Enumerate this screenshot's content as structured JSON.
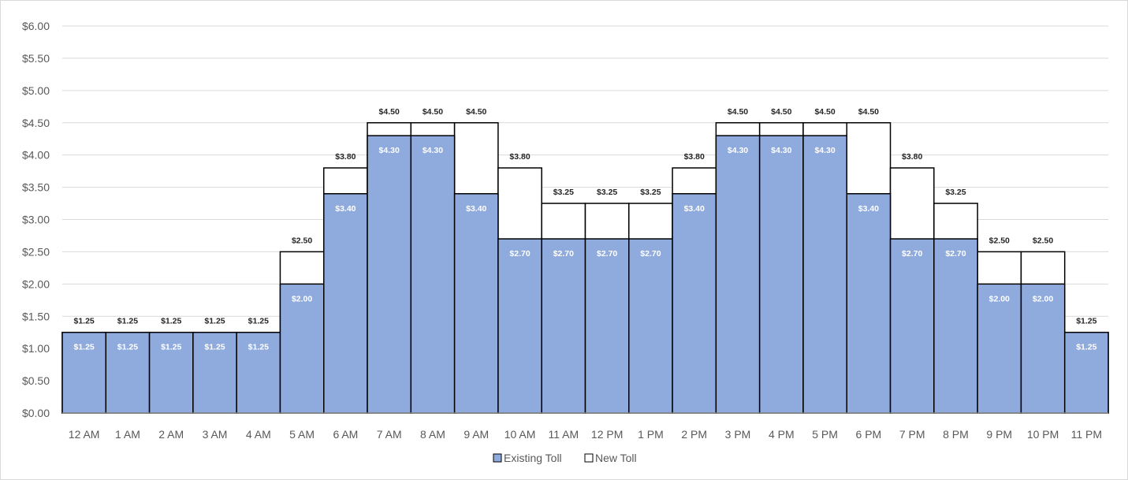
{
  "chart_data": {
    "type": "bar",
    "title": "",
    "xlabel": "",
    "ylabel": "",
    "ylim": [
      0,
      6
    ],
    "ytick_step": 0.5,
    "y_format": "currency-2dp",
    "grid": true,
    "legend_position": "bottom",
    "categories": [
      "12 AM",
      "1 AM",
      "2 AM",
      "3 AM",
      "4 AM",
      "5 AM",
      "6 AM",
      "7 AM",
      "8 AM",
      "9 AM",
      "10 AM",
      "11 AM",
      "12 PM",
      "1 PM",
      "2 PM",
      "3 PM",
      "4 PM",
      "5 PM",
      "6 PM",
      "7 PM",
      "8 PM",
      "9 PM",
      "10 PM",
      "11 PM"
    ],
    "series": [
      {
        "name": "New Toll",
        "color": "#ffffff",
        "values": [
          1.25,
          1.25,
          1.25,
          1.25,
          1.25,
          2.5,
          3.8,
          4.5,
          4.5,
          4.5,
          3.8,
          3.25,
          3.25,
          3.25,
          3.8,
          4.5,
          4.5,
          4.5,
          4.5,
          3.8,
          3.25,
          2.5,
          2.5,
          1.25
        ],
        "labels": [
          "$1.25",
          "$1.25",
          "$1.25",
          "$1.25",
          "$1.25",
          "$2.50",
          "$3.80",
          "$4.50",
          "$4.50",
          "$4.50",
          "$3.80",
          "$3.25",
          "$3.25",
          "$3.25",
          "$3.80",
          "$4.50",
          "$4.50",
          "$4.50",
          "$4.50",
          "$3.80",
          "$3.25",
          "$2.50",
          "$2.50",
          "$1.25"
        ]
      },
      {
        "name": "Existing Toll",
        "color": "#8faadc",
        "values": [
          1.25,
          1.25,
          1.25,
          1.25,
          1.25,
          2.0,
          3.4,
          4.3,
          4.3,
          3.4,
          2.7,
          2.7,
          2.7,
          2.7,
          3.4,
          4.3,
          4.3,
          4.3,
          3.4,
          2.7,
          2.7,
          2.0,
          2.0,
          1.25
        ],
        "labels": [
          "$1.25",
          "$1.25",
          "$1.25",
          "$1.25",
          "$1.25",
          "$2.00",
          "$3.40",
          "$4.30",
          "$4.30",
          "$3.40",
          "$2.70",
          "$2.70",
          "$2.70",
          "$2.70",
          "$3.40",
          "$4.30",
          "$4.30",
          "$4.30",
          "$3.40",
          "$2.70",
          "$2.70",
          "$2.00",
          "$2.00",
          "$1.25"
        ]
      }
    ],
    "yticks": [
      "$0.00",
      "$0.50",
      "$1.00",
      "$1.50",
      "$2.00",
      "$2.50",
      "$3.00",
      "$3.50",
      "$4.00",
      "$4.50",
      "$5.00",
      "$5.50",
      "$6.00"
    ],
    "legend": [
      {
        "name": "Existing Toll",
        "color": "#8faadc"
      },
      {
        "name": "New Toll",
        "color": "#ffffff"
      }
    ],
    "colors": {
      "gridline": "#d9d9d9",
      "bar_outline": "#000000",
      "existing_label": "#ffffff",
      "new_label": "#262626",
      "axis_text": "#595959"
    }
  }
}
